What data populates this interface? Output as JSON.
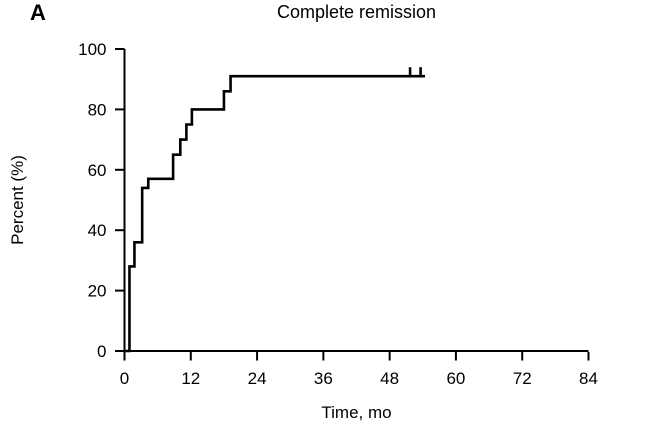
{
  "panel_label": "A",
  "chart_data": {
    "type": "line",
    "subtype": "kaplan_meier_step",
    "title": "Complete remission",
    "xlabel": "Time, mo",
    "ylabel": "Percent (%)",
    "xlim": [
      0,
      84
    ],
    "ylim": [
      0,
      100
    ],
    "xticks": [
      0,
      12,
      24,
      36,
      48,
      60,
      72,
      84
    ],
    "yticks": [
      0,
      20,
      40,
      60,
      80,
      100
    ],
    "grid": false,
    "legend": false,
    "line_color": "#000000",
    "series": [
      {
        "name": "Complete remission",
        "start": {
          "t": 0,
          "p": 0
        },
        "rises": [
          {
            "t": 0.9,
            "p": 28
          },
          {
            "t": 1.8,
            "p": 36
          },
          {
            "t": 3.2,
            "p": 54
          },
          {
            "t": 4.3,
            "p": 57
          },
          {
            "t": 8.8,
            "p": 65
          },
          {
            "t": 10.1,
            "p": 70
          },
          {
            "t": 11.2,
            "p": 75
          },
          {
            "t": 12.2,
            "p": 80
          },
          {
            "t": 18.0,
            "p": 86
          },
          {
            "t": 19.2,
            "p": 91
          }
        ],
        "end_t": 54.4,
        "censor_marks_t": [
          51.7,
          53.6
        ]
      }
    ]
  }
}
